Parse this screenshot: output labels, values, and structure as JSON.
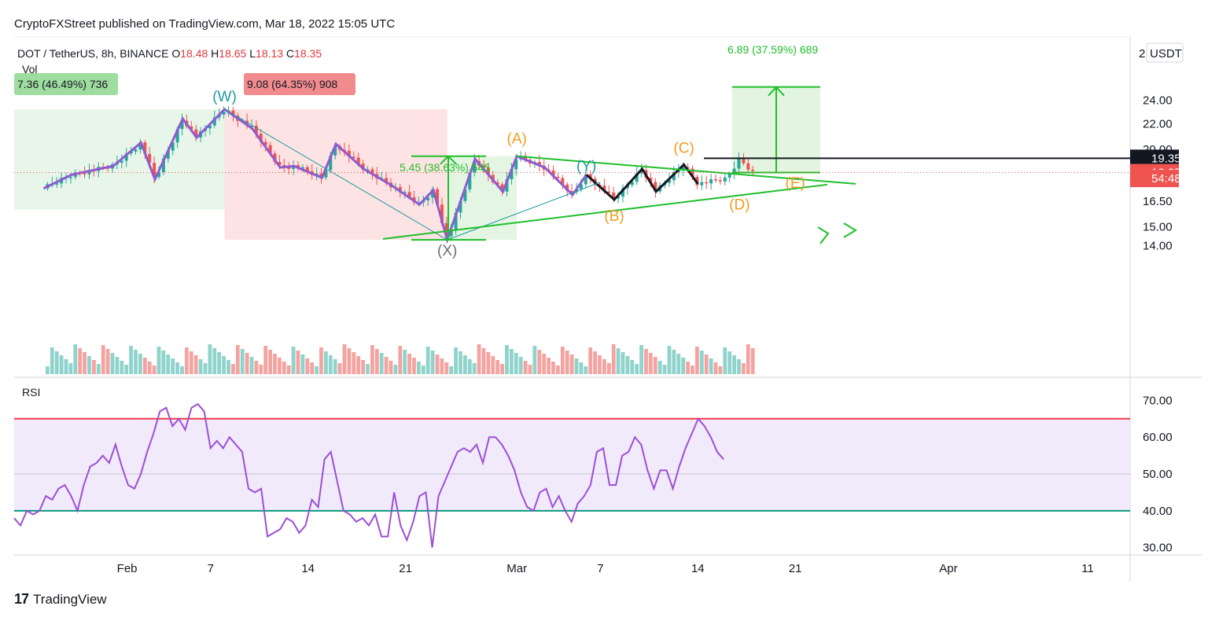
{
  "header": {
    "text": "CryptoFXStreet published on TradingView.com, Mar 18, 2022 15:05 UTC"
  },
  "legend": {
    "symbol": "DOT / TetherUS, 8h, BINANCE",
    "o_label": "O",
    "o": "18.48",
    "h_label": "H",
    "h": "18.65",
    "l_label": "L",
    "l": "18.13",
    "c_label": "C",
    "c": "18.35",
    "vol": "Vol",
    "rsi": "RSI"
  },
  "footer": {
    "brand": "TradingView",
    "logo": "17"
  },
  "colors": {
    "up": "#26a69a",
    "down": "#ef5350",
    "wave": "#8e5bd1",
    "green_line": "#1fbf2b",
    "orange": "#f29b1d",
    "teal": "#1b9aa0",
    "rsi_line": "#9c4fd6",
    "black": "#131722"
  },
  "chart_data": [
    {
      "type": "candlestick",
      "title": "DOT / TetherUS, 8h, BINANCE",
      "x_ticks": [
        "Feb",
        "7",
        "14",
        "21",
        "Mar",
        "7",
        "14",
        "21",
        "Apr",
        "11"
      ],
      "y_ticks": [
        "24.00",
        "22.00",
        "20.00",
        "16.50",
        "15.00",
        "14.00"
      ],
      "currency_label": "USDT",
      "top_tick_partial": "2",
      "price_scale": "log",
      "price_path": [
        {
          "date": "2022-01-26",
          "price": 17.3
        },
        {
          "date": "2022-01-28",
          "price": 18.2
        },
        {
          "date": "2022-01-31",
          "price": 18.8
        },
        {
          "date": "2022-02-02",
          "price": 20.5
        },
        {
          "date": "2022-02-03",
          "price": 17.9
        },
        {
          "date": "2022-02-05",
          "price": 22.4
        },
        {
          "date": "2022-02-06",
          "price": 20.9
        },
        {
          "date": "2022-02-08",
          "price": 23.2
        },
        {
          "date": "2022-02-10",
          "price": 21.6
        },
        {
          "date": "2022-02-12",
          "price": 18.7
        },
        {
          "date": "2022-02-13",
          "price": 18.8
        },
        {
          "date": "2022-02-15",
          "price": 18.0
        },
        {
          "date": "2022-02-16",
          "price": 20.4
        },
        {
          "date": "2022-02-18",
          "price": 18.6
        },
        {
          "date": "2022-02-20",
          "price": 17.5
        },
        {
          "date": "2022-02-22",
          "price": 16.3
        },
        {
          "date": "2022-02-23",
          "price": 17.2
        },
        {
          "date": "2022-02-24",
          "price": 14.3
        },
        {
          "date": "2022-02-26",
          "price": 19.3
        },
        {
          "date": "2022-02-28",
          "price": 17.1
        },
        {
          "date": "2022-03-01",
          "price": 19.5
        },
        {
          "date": "2022-03-03",
          "price": 18.7
        },
        {
          "date": "2022-03-05",
          "price": 16.9
        },
        {
          "date": "2022-03-06",
          "price": 18.2
        },
        {
          "date": "2022-03-08",
          "price": 16.6
        },
        {
          "date": "2022-03-10",
          "price": 18.6
        },
        {
          "date": "2022-03-11",
          "price": 17.1
        },
        {
          "date": "2022-03-13",
          "price": 18.9
        },
        {
          "date": "2022-03-14",
          "price": 17.6
        },
        {
          "date": "2022-03-16",
          "price": 17.9
        },
        {
          "date": "2022-03-17",
          "price": 19.3
        },
        {
          "date": "2022-03-18",
          "price": 18.35
        }
      ],
      "price_labels": [
        {
          "value": "19.35",
          "price": 19.35,
          "style": "dark"
        },
        {
          "value": "18.35",
          "price": 18.35,
          "style": "red"
        },
        {
          "value": "54:48",
          "price": 17.95,
          "style": "red"
        }
      ],
      "measurements": [
        {
          "text": "7.36 (46.49%) 736",
          "type": "gain"
        },
        {
          "text": "9.08 (64.35%) 908",
          "type": "loss"
        },
        {
          "text": "5.45 (38.63%) 545",
          "type": "gain"
        },
        {
          "text": "6.89 (37.59%) 689",
          "type": "gain"
        }
      ],
      "wave_labels": [
        {
          "text": "(W)",
          "date": "2022-02-08",
          "price": 23.9,
          "color": "teal"
        },
        {
          "text": "(X)",
          "date": "2022-02-24",
          "price": 13.5,
          "color": "gray"
        },
        {
          "text": "(A)",
          "date": "2022-03-01",
          "price": 20.45,
          "color": "orange"
        },
        {
          "text": "(B)",
          "date": "2022-03-08",
          "price": 15.35,
          "color": "orange"
        },
        {
          "text": "(C)",
          "date": "2022-03-13",
          "price": 19.75,
          "color": "orange"
        },
        {
          "text": "(D)",
          "date": "2022-03-17",
          "price": 16.0,
          "color": "orange"
        },
        {
          "text": "(E)",
          "date": "2022-03-21",
          "price": 17.35,
          "color": "orange"
        },
        {
          "text": "(Y)",
          "date": "2022-03-06",
          "price": 18.45,
          "color": "teal"
        }
      ],
      "resistance_level": 19.35,
      "triangle_upper": [
        {
          "date": "2022-03-01",
          "price": 19.5
        },
        {
          "date": "2022-03-25",
          "price": 17.6
        }
      ],
      "triangle_lower": [
        {
          "date": "2022-02-24",
          "price": 14.35
        },
        {
          "date": "2022-03-25",
          "price": 17.55
        }
      ],
      "volume": "bars below price (relative height only)"
    },
    {
      "type": "line",
      "title": "RSI",
      "y_ticks": [
        "70.00",
        "60.00",
        "50.00",
        "40.00",
        "30.00"
      ],
      "ylim": [
        28,
        75
      ],
      "bands": {
        "upper": 65,
        "lower": 40,
        "middle": 50
      },
      "values": [
        38,
        36,
        40,
        39,
        40,
        44,
        43,
        46,
        47,
        44,
        40,
        47,
        52,
        53,
        55,
        53,
        58,
        52,
        47,
        46,
        50,
        56,
        61,
        67,
        68,
        63,
        65,
        62,
        68,
        69,
        67,
        57,
        59,
        57,
        60,
        58,
        56,
        46,
        45,
        46,
        33,
        34,
        35,
        38,
        37,
        34,
        36,
        43,
        41,
        54,
        56,
        48,
        40,
        39,
        37,
        38,
        36,
        39,
        33,
        33,
        45,
        36,
        32,
        37,
        44,
        45,
        30,
        44,
        48,
        52,
        56,
        57,
        56,
        58,
        53,
        60,
        60,
        58,
        55,
        51,
        45,
        41,
        40,
        45,
        46,
        41,
        44,
        40,
        37,
        42,
        44,
        47,
        56,
        57,
        47,
        47,
        55,
        56,
        60,
        58,
        51,
        46,
        51,
        51,
        46,
        52,
        57,
        61,
        65,
        63,
        60,
        56,
        54
      ]
    }
  ]
}
